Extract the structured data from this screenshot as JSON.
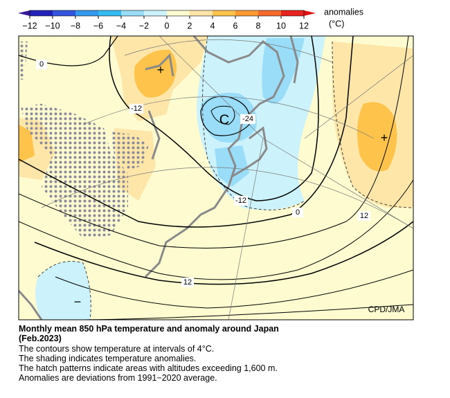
{
  "colorbar": {
    "title": "anomalies",
    "unit": "(°C)",
    "ticks": [
      {
        "value": -12,
        "label": "−12"
      },
      {
        "value": -10,
        "label": "−10"
      },
      {
        "value": -8,
        "label": "−8"
      },
      {
        "value": -6,
        "label": "−6"
      },
      {
        "value": -4,
        "label": "−4"
      },
      {
        "value": -2,
        "label": "−2"
      },
      0,
      2,
      4,
      6,
      8,
      10,
      12
    ],
    "colors": [
      "#2222bb",
      "#3355dd",
      "#3399ee",
      "#33bbf0",
      "#99ddf8",
      "#ccf2fc",
      "#fdfbcf",
      "#fde6a8",
      "#fdc34a",
      "#fd9a33",
      "#f56a2a",
      "#e8231f"
    ],
    "under_color": "#3a1a9a",
    "over_color": "#e01010"
  },
  "map": {
    "contour_labels": [
      "0",
      "-12",
      "-24",
      "-12",
      "0",
      "12",
      "12"
    ],
    "markers": [
      "C",
      "+",
      "+",
      "−"
    ],
    "credit": "CPD/JMA"
  },
  "caption": {
    "title": "Monthly mean 850 hPa temperature and anomaly around Japan",
    "date": "(Feb.2023)",
    "lines": [
      "The contours show temperature at intervals of 4°C.",
      "The shading indicates temperature anomalies.",
      "The hatch patterns indicate areas with altitudes exceeding 1,600 m.",
      "Anomalies are deviations from 1991−2020 average."
    ]
  }
}
